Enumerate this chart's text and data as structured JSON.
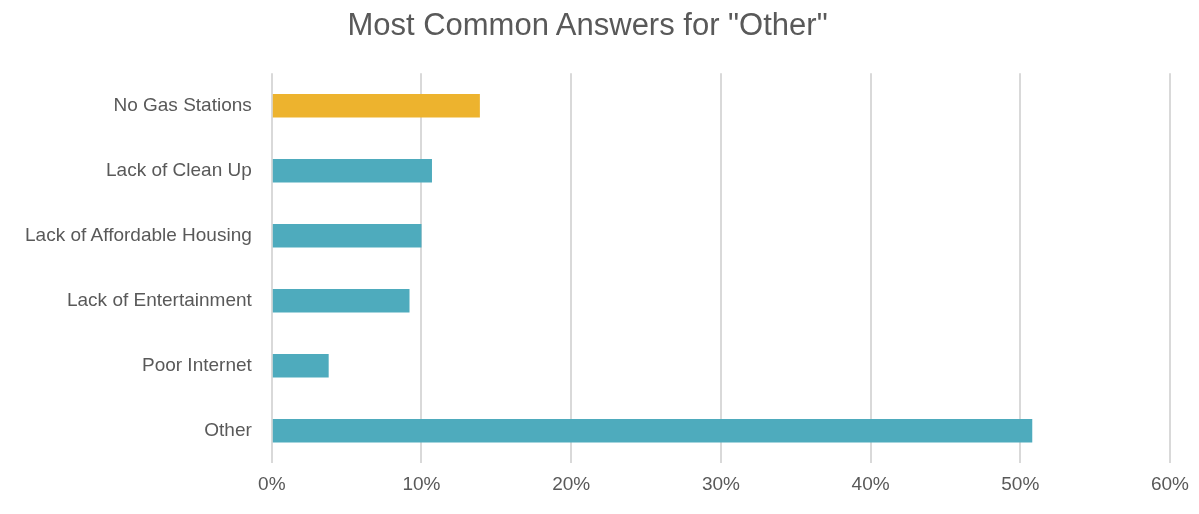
{
  "chart_data": {
    "type": "bar",
    "orientation": "horizontal",
    "title": "Most Common Answers for \"Other\"",
    "categories": [
      "No Gas Stations",
      "Lack of Clean Up",
      "Lack of Affordable Housing",
      "Lack of Entertainment",
      "Poor Internet",
      "Other"
    ],
    "values": [
      13.9,
      10.7,
      10.0,
      9.2,
      3.8,
      50.8
    ],
    "colors": [
      "#edb32e",
      "#4eabbd",
      "#4eabbd",
      "#4eabbd",
      "#4eabbd",
      "#4eabbd"
    ],
    "xlim": [
      0,
      60
    ],
    "xticks": [
      {
        "value": 0,
        "label": "0%"
      },
      {
        "value": 10,
        "label": "10%"
      },
      {
        "value": 20,
        "label": "20%"
      },
      {
        "value": 30,
        "label": "30%"
      },
      {
        "value": 40,
        "label": "40%"
      },
      {
        "value": 50,
        "label": "50%"
      },
      {
        "value": 60,
        "label": "60%"
      }
    ],
    "grid": "x",
    "legend": false
  }
}
